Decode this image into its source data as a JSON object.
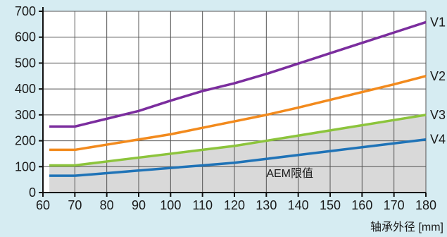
{
  "chart_data": {
    "type": "line",
    "x": [
      62,
      70,
      80,
      90,
      100,
      110,
      120,
      130,
      140,
      150,
      160,
      170,
      180
    ],
    "series": [
      {
        "name": "V1",
        "color": "#7b2d9e",
        "values": [
          255,
          255,
          285,
          315,
          355,
          392,
          422,
          458,
          498,
          538,
          578,
          618,
          658
        ]
      },
      {
        "name": "V2",
        "color": "#f28a1d",
        "values": [
          165,
          165,
          185,
          205,
          225,
          250,
          275,
          300,
          328,
          358,
          388,
          418,
          450
        ]
      },
      {
        "name": "V3",
        "color": "#8cc43c",
        "values": [
          105,
          105,
          120,
          135,
          150,
          165,
          180,
          200,
          220,
          240,
          260,
          280,
          300
        ]
      },
      {
        "name": "V4",
        "color": "#1f73b7",
        "values": [
          65,
          65,
          75,
          85,
          95,
          105,
          115,
          130,
          145,
          160,
          175,
          190,
          205
        ]
      }
    ],
    "shaded_region": {
      "under_series": "V3",
      "color": "#d9d9d9"
    },
    "annotation": "AEM限值",
    "xticks": [
      60,
      70,
      80,
      90,
      100,
      110,
      120,
      130,
      140,
      150,
      160,
      170,
      180
    ],
    "yticks": [
      0,
      100,
      200,
      300,
      400,
      500,
      600,
      700
    ],
    "xlim": [
      60,
      180
    ],
    "ylim": [
      0,
      700
    ],
    "xlabel": "轴承外径 [mm]",
    "ylabel": "",
    "grid": true
  }
}
